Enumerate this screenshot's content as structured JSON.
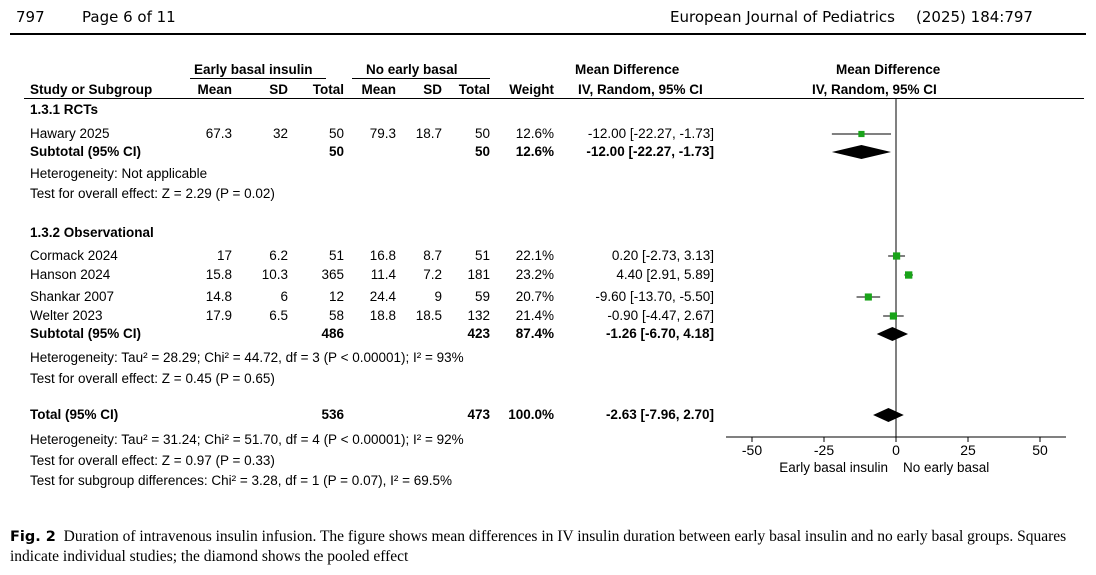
{
  "header": {
    "page_num": "797",
    "page_of": "Page 6 of 11",
    "journal": "European Journal of Pediatrics",
    "citation": "(2025) 184:797"
  },
  "table": {
    "group_exp": "Early basal insulin",
    "group_ctl": "No early basal",
    "md_header": "Mean Difference",
    "md_sub": "IV, Random, 95% CI",
    "plot_header": "Mean Difference",
    "plot_sub": "IV, Random, 95% CI",
    "cols": {
      "study": "Study or Subgroup",
      "mean_e": "Mean",
      "sd_e": "SD",
      "total_e": "Total",
      "mean_c": "Mean",
      "sd_c": "SD",
      "total_c": "Total",
      "weight": "Weight"
    },
    "sub1": {
      "title": "1.3.1 RCTs",
      "studies": [
        {
          "name": "Hawary 2025",
          "mean_e": "67.3",
          "sd_e": "32",
          "n_e": "50",
          "mean_c": "79.3",
          "sd_c": "18.7",
          "n_c": "50",
          "weight": "12.6%",
          "ci": "-12.00 [-22.27, -1.73]"
        }
      ],
      "subtotal": {
        "label": "Subtotal (95% CI)",
        "n_e": "50",
        "n_c": "50",
        "weight": "12.6%",
        "ci": "-12.00 [-22.27, -1.73]"
      },
      "het": "Heterogeneity: Not applicable",
      "test": "Test for overall effect: Z = 2.29 (P = 0.02)"
    },
    "sub2": {
      "title": "1.3.2 Observational",
      "studies": [
        {
          "name": "Cormack 2024",
          "mean_e": "17",
          "sd_e": "6.2",
          "n_e": "51",
          "mean_c": "16.8",
          "sd_c": "8.7",
          "n_c": "51",
          "weight": "22.1%",
          "ci": "0.20 [-2.73, 3.13]"
        },
        {
          "name": "Hanson 2024",
          "mean_e": "15.8",
          "sd_e": "10.3",
          "n_e": "365",
          "mean_c": "11.4",
          "sd_c": "7.2",
          "n_c": "181",
          "weight": "23.2%",
          "ci": "4.40 [2.91, 5.89]"
        },
        {
          "name": "Shankar 2007",
          "mean_e": "14.8",
          "sd_e": "6",
          "n_e": "12",
          "mean_c": "24.4",
          "sd_c": "9",
          "n_c": "59",
          "weight": "20.7%",
          "ci": "-9.60 [-13.70, -5.50]"
        },
        {
          "name": "Welter 2023",
          "mean_e": "17.9",
          "sd_e": "6.5",
          "n_e": "58",
          "mean_c": "18.8",
          "sd_c": "18.5",
          "n_c": "132",
          "weight": "21.4%",
          "ci": "-0.90 [-4.47, 2.67]"
        }
      ],
      "subtotal": {
        "label": "Subtotal (95% CI)",
        "n_e": "486",
        "n_c": "423",
        "weight": "87.4%",
        "ci": "-1.26 [-6.70, 4.18]"
      },
      "het": "Heterogeneity: Tau² = 28.29; Chi² = 44.72, df = 3 (P < 0.00001); I² = 93%",
      "test": "Test for overall effect: Z = 0.45 (P = 0.65)"
    },
    "total": {
      "label": "Total (95% CI)",
      "n_e": "536",
      "n_c": "473",
      "weight": "100.0%",
      "ci": "-2.63 [-7.96, 2.70]"
    },
    "total_het": "Heterogeneity: Tau² = 31.24; Chi² = 51.70, df = 4 (P < 0.00001); I² = 92%",
    "total_test": "Test for overall effect: Z = 0.97 (P = 0.33)",
    "subgroup_test": "Test for subgroup differences: Chi² = 3.28, df = 1 (P = 0.07), I² = 69.5%"
  },
  "chart_data": {
    "type": "forest",
    "title": "Mean Difference",
    "xlabel_left": "Early basal insulin",
    "xlabel_right": "No early basal",
    "xlim": [
      -50,
      50
    ],
    "ticks": [
      -50,
      -25,
      0,
      25,
      50
    ],
    "tick_labels": [
      "-50",
      "-25",
      "0",
      "25",
      "50"
    ],
    "marker_color": "#19a319",
    "studies": [
      {
        "name": "Hawary 2025",
        "md": -12.0,
        "lo": -22.27,
        "hi": -1.73,
        "weight": 12.6
      },
      {
        "name": "Cormack 2024",
        "md": 0.2,
        "lo": -2.73,
        "hi": 3.13,
        "weight": 22.1
      },
      {
        "name": "Hanson 2024",
        "md": 4.4,
        "lo": 2.91,
        "hi": 5.89,
        "weight": 23.2
      },
      {
        "name": "Shankar 2007",
        "md": -9.6,
        "lo": -13.7,
        "hi": -5.5,
        "weight": 20.7
      },
      {
        "name": "Welter 2023",
        "md": -0.9,
        "lo": -4.47,
        "hi": 2.67,
        "weight": 21.4
      }
    ],
    "pooled": [
      {
        "name": "Subtotal RCTs",
        "md": -12.0,
        "lo": -22.27,
        "hi": -1.73
      },
      {
        "name": "Subtotal Observational",
        "md": -1.26,
        "lo": -6.7,
        "hi": 4.18
      },
      {
        "name": "Total",
        "md": -2.63,
        "lo": -7.96,
        "hi": 2.7
      }
    ]
  },
  "caption": {
    "label": "Fig. 2",
    "text": "Duration of intravenous insulin infusion. The figure shows mean differences in IV insulin duration between early basal insulin and no early basal groups. Squares indicate individual studies; the diamond shows the pooled effect"
  }
}
